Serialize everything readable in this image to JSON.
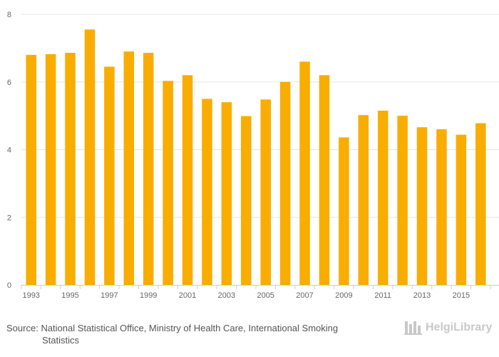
{
  "colors": {
    "bar": "#f8ad00",
    "grid": "#e6e6e6",
    "axis": "#cccccc",
    "text": "#666666",
    "logo": "#c8c8c8"
  },
  "source": {
    "prefix": "Source:",
    "text_line1": "National Statistical Office, Ministry of Health Care, International Smoking",
    "text_line2": "Statistics"
  },
  "logo": {
    "text": "HelgiLibrary"
  },
  "chart_data": {
    "type": "bar",
    "title": "",
    "xlabel": "",
    "ylabel": "",
    "ylim": [
      0,
      8
    ],
    "y_ticks": [
      0,
      2,
      4,
      6,
      8
    ],
    "grid": true,
    "legend": "none",
    "categories": [
      "1993",
      "1994",
      "1995",
      "1996",
      "1997",
      "1998",
      "1999",
      "2000",
      "2001",
      "2002",
      "2003",
      "2004",
      "2005",
      "2006",
      "2007",
      "2008",
      "2009",
      "2010",
      "2011",
      "2012",
      "2013",
      "2014",
      "2015",
      "2016"
    ],
    "x_tick_labels": [
      "1993",
      "1995",
      "1997",
      "1999",
      "2001",
      "2003",
      "2005",
      "2007",
      "2009",
      "2011",
      "2013",
      "2015"
    ],
    "values": [
      6.8,
      6.82,
      6.86,
      7.55,
      6.45,
      6.9,
      6.86,
      6.03,
      6.2,
      5.5,
      5.4,
      4.99,
      5.48,
      6.0,
      6.6,
      6.2,
      4.36,
      5.02,
      5.15,
      5.0,
      4.66,
      4.6,
      4.44,
      4.78
    ]
  }
}
